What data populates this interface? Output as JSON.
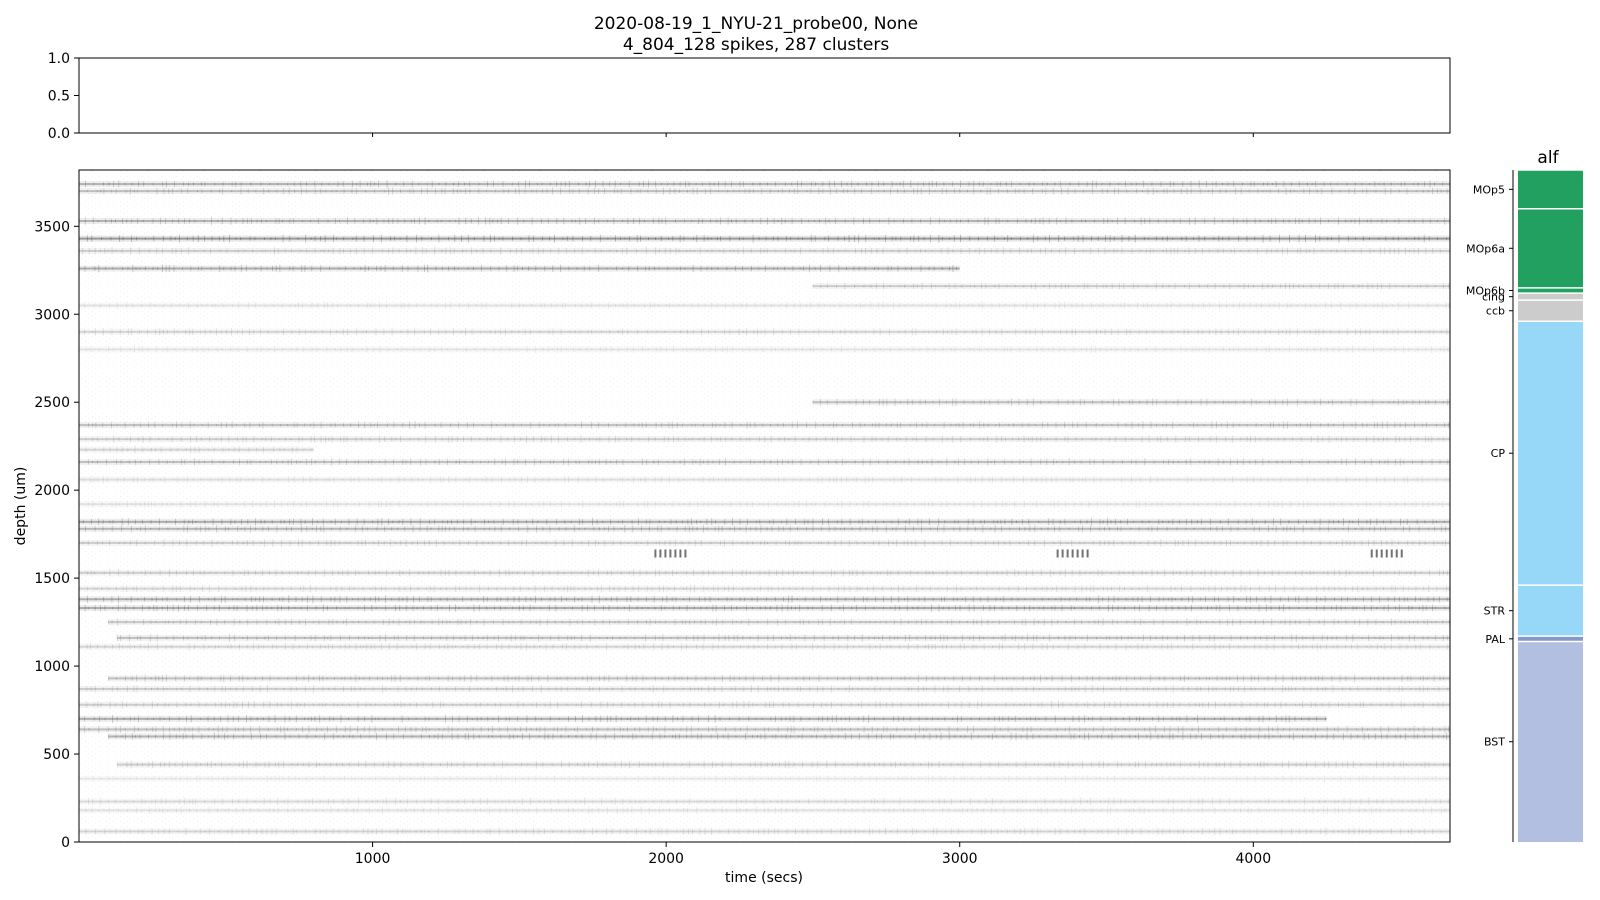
{
  "chart_data": [
    {
      "type": "line",
      "panel": "top",
      "title_line1": "2020-08-19_1_NYU-21_probe00, None",
      "title_line2": "4_804_128 spikes, 287 clusters",
      "xlim": [
        0,
        4670
      ],
      "ylim": [
        0.0,
        1.0
      ],
      "yticks": [
        "1.0",
        "0.5",
        "0.0"
      ],
      "ytick_values": [
        1.0,
        0.5,
        0.0
      ],
      "xticks": [
        1000,
        2000,
        3000,
        4000
      ],
      "series": []
    },
    {
      "type": "heatmap",
      "panel": "raster",
      "xlabel": "time (secs)",
      "ylabel": "depth (um)",
      "xlim": [
        0,
        4670
      ],
      "ylim": [
        0,
        3820
      ],
      "xticks": [
        1000,
        2000,
        3000,
        4000
      ],
      "xtick_labels": [
        "1000",
        "2000",
        "3000",
        "4000"
      ],
      "yticks": [
        0,
        500,
        1000,
        1500,
        2000,
        2500,
        3000,
        3500
      ],
      "ytick_labels": [
        "0",
        "500",
        "1000",
        "1500",
        "2000",
        "2500",
        "3000",
        "3500"
      ],
      "colormap": "binary",
      "depth_bands": [
        {
          "depth": 3740,
          "intensity": 0.55,
          "t_start": 0,
          "t_end": 4670
        },
        {
          "depth": 3700,
          "intensity": 0.45,
          "t_start": 0,
          "t_end": 4670
        },
        {
          "depth": 3530,
          "intensity": 0.55,
          "t_start": 0,
          "t_end": 4670
        },
        {
          "depth": 3430,
          "intensity": 0.75,
          "t_start": 0,
          "t_end": 4670
        },
        {
          "depth": 3360,
          "intensity": 0.35,
          "t_start": 0,
          "t_end": 4670
        },
        {
          "depth": 3260,
          "intensity": 0.6,
          "t_start": 0,
          "t_end": 3000
        },
        {
          "depth": 3160,
          "intensity": 0.35,
          "t_start": 2500,
          "t_end": 4670
        },
        {
          "depth": 3050,
          "intensity": 0.2,
          "t_start": 0,
          "t_end": 4670
        },
        {
          "depth": 2900,
          "intensity": 0.3,
          "t_start": 0,
          "t_end": 4670
        },
        {
          "depth": 2800,
          "intensity": 0.18,
          "t_start": 0,
          "t_end": 4670
        },
        {
          "depth": 2500,
          "intensity": 0.45,
          "t_start": 2500,
          "t_end": 4670
        },
        {
          "depth": 2370,
          "intensity": 0.45,
          "t_start": 0,
          "t_end": 4670
        },
        {
          "depth": 2290,
          "intensity": 0.35,
          "t_start": 0,
          "t_end": 4670
        },
        {
          "depth": 2230,
          "intensity": 0.3,
          "t_start": 0,
          "t_end": 800
        },
        {
          "depth": 2160,
          "intensity": 0.45,
          "t_start": 0,
          "t_end": 4670
        },
        {
          "depth": 2060,
          "intensity": 0.22,
          "t_start": 0,
          "t_end": 4670
        },
        {
          "depth": 1920,
          "intensity": 0.2,
          "t_start": 0,
          "t_end": 4670
        },
        {
          "depth": 1820,
          "intensity": 0.6,
          "t_start": 0,
          "t_end": 4670
        },
        {
          "depth": 1780,
          "intensity": 0.5,
          "t_start": 0,
          "t_end": 4670
        },
        {
          "depth": 1700,
          "intensity": 0.35,
          "t_start": 0,
          "t_end": 4670
        },
        {
          "depth": 1530,
          "intensity": 0.35,
          "t_start": 0,
          "t_end": 4670
        },
        {
          "depth": 1440,
          "intensity": 0.3,
          "t_start": 0,
          "t_end": 4670
        },
        {
          "depth": 1380,
          "intensity": 0.6,
          "t_start": 0,
          "t_end": 4670
        },
        {
          "depth": 1330,
          "intensity": 0.6,
          "t_start": 0,
          "t_end": 4670
        },
        {
          "depth": 1250,
          "intensity": 0.4,
          "t_start": 100,
          "t_end": 4670
        },
        {
          "depth": 1160,
          "intensity": 0.45,
          "t_start": 130,
          "t_end": 4670
        },
        {
          "depth": 1110,
          "intensity": 0.3,
          "t_start": 0,
          "t_end": 4670
        },
        {
          "depth": 930,
          "intensity": 0.45,
          "t_start": 100,
          "t_end": 4670
        },
        {
          "depth": 870,
          "intensity": 0.35,
          "t_start": 0,
          "t_end": 4670
        },
        {
          "depth": 780,
          "intensity": 0.35,
          "t_start": 0,
          "t_end": 4670
        },
        {
          "depth": 700,
          "intensity": 0.6,
          "t_start": 0,
          "t_end": 4250
        },
        {
          "depth": 640,
          "intensity": 0.45,
          "t_start": 0,
          "t_end": 4670
        },
        {
          "depth": 600,
          "intensity": 0.55,
          "t_start": 100,
          "t_end": 4670
        },
        {
          "depth": 440,
          "intensity": 0.35,
          "t_start": 130,
          "t_end": 4670
        },
        {
          "depth": 360,
          "intensity": 0.15,
          "t_start": 0,
          "t_end": 4670
        },
        {
          "depth": 230,
          "intensity": 0.25,
          "t_start": 0,
          "t_end": 4670
        },
        {
          "depth": 180,
          "intensity": 0.2,
          "t_start": 0,
          "t_end": 4670
        },
        {
          "depth": 60,
          "intensity": 0.3,
          "t_start": 0,
          "t_end": 4670
        }
      ],
      "bursts": [
        {
          "time": 1960,
          "depth": 1640
        },
        {
          "time": 3330,
          "depth": 1640
        },
        {
          "time": 4400,
          "depth": 1640
        }
      ]
    },
    {
      "type": "table",
      "panel": "brain-regions",
      "title": "alf",
      "ylim": [
        0,
        3820
      ],
      "regions": [
        {
          "label": "MOp5",
          "start": 3600,
          "end": 3820,
          "color": "#21a05f"
        },
        {
          "label": "MOp6a",
          "start": 3150,
          "end": 3600,
          "color": "#21a05f"
        },
        {
          "label": "MOp6b",
          "start": 3120,
          "end": 3150,
          "color": "#21a05f"
        },
        {
          "label": "cing",
          "start": 3080,
          "end": 3120,
          "color": "#cccccc"
        },
        {
          "label": "ccb",
          "start": 2960,
          "end": 3080,
          "color": "#cccccc"
        },
        {
          "label": "CP",
          "start": 1460,
          "end": 2960,
          "color": "#97d7f7"
        },
        {
          "label": "STR",
          "start": 1170,
          "end": 1460,
          "color": "#97d7f7"
        },
        {
          "label": "PAL",
          "start": 1140,
          "end": 1170,
          "color": "#8598cc"
        },
        {
          "label": "BST",
          "start": 0,
          "end": 1140,
          "color": "#b3bfe0"
        }
      ]
    }
  ]
}
